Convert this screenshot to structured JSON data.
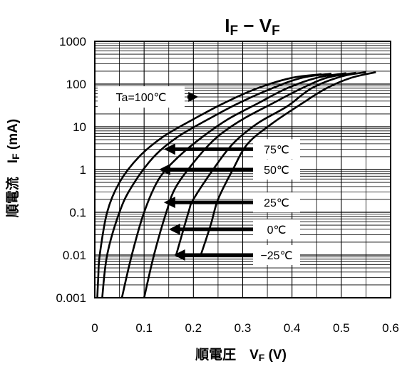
{
  "chart_data": {
    "type": "line",
    "title_main": "I",
    "title_sub1": "F",
    "title_mid": " − V",
    "title_sub2": "F",
    "xlabel_main": "順電圧　V",
    "xlabel_sub": "F",
    "xlabel_unit": " (V)",
    "ylabel_main": "順電流　I",
    "ylabel_sub": "F",
    "ylabel_unit": " (mA)",
    "xlim": [
      0,
      0.6
    ],
    "ylim": [
      0.001,
      1000
    ],
    "yscale": "log",
    "xticks": [
      "0",
      "0.1",
      "0.2",
      "0.3",
      "0.4",
      "0.5",
      "0.6"
    ],
    "yticks": [
      "0.001",
      "0.01",
      "0.1",
      "1",
      "10",
      "100",
      "1000"
    ],
    "grid": true,
    "series": [
      {
        "name": "Ta=100℃",
        "points": [
          [
            0.005,
            0.001
          ],
          [
            0.007,
            0.003
          ],
          [
            0.01,
            0.01
          ],
          [
            0.025,
            0.1
          ],
          [
            0.05,
            0.5
          ],
          [
            0.09,
            2
          ],
          [
            0.14,
            6
          ],
          [
            0.2,
            15
          ],
          [
            0.26,
            35
          ],
          [
            0.33,
            80
          ],
          [
            0.4,
            140
          ],
          [
            0.46,
            170
          ]
        ]
      },
      {
        "name": "75℃",
        "points": [
          [
            0.015,
            0.001
          ],
          [
            0.025,
            0.01
          ],
          [
            0.05,
            0.1
          ],
          [
            0.075,
            0.4
          ],
          [
            0.12,
            2
          ],
          [
            0.17,
            6
          ],
          [
            0.23,
            15
          ],
          [
            0.29,
            35
          ],
          [
            0.36,
            80
          ],
          [
            0.42,
            140
          ],
          [
            0.48,
            175
          ]
        ]
      },
      {
        "name": "50℃",
        "points": [
          [
            0.055,
            0.001
          ],
          [
            0.075,
            0.01
          ],
          [
            0.1,
            0.1
          ],
          [
            0.13,
            0.6
          ],
          [
            0.17,
            2
          ],
          [
            0.22,
            6
          ],
          [
            0.27,
            15
          ],
          [
            0.33,
            35
          ],
          [
            0.39,
            80
          ],
          [
            0.45,
            140
          ],
          [
            0.51,
            180
          ]
        ]
      },
      {
        "name": "25℃",
        "points": [
          [
            0.1,
            0.001
          ],
          [
            0.12,
            0.01
          ],
          [
            0.145,
            0.1
          ],
          [
            0.165,
            0.4
          ],
          [
            0.21,
            2
          ],
          [
            0.25,
            6
          ],
          [
            0.3,
            15
          ],
          [
            0.36,
            35
          ],
          [
            0.42,
            80
          ],
          [
            0.47,
            140
          ],
          [
            0.53,
            185
          ]
        ]
      },
      {
        "name": "0℃",
        "points": [
          [
            0.165,
            0.01
          ],
          [
            0.19,
            0.1
          ],
          [
            0.2,
            0.2
          ],
          [
            0.24,
            1
          ],
          [
            0.28,
            4
          ],
          [
            0.33,
            12
          ],
          [
            0.39,
            30
          ],
          [
            0.44,
            80
          ],
          [
            0.5,
            150
          ],
          [
            0.55,
            190
          ]
        ]
      },
      {
        "name": "−25℃",
        "points": [
          [
            0.215,
            0.01
          ],
          [
            0.235,
            0.05
          ],
          [
            0.25,
            0.2
          ],
          [
            0.28,
            1
          ],
          [
            0.31,
            4
          ],
          [
            0.36,
            12
          ],
          [
            0.42,
            35
          ],
          [
            0.47,
            80
          ],
          [
            0.52,
            140
          ],
          [
            0.57,
            190
          ]
        ]
      }
    ],
    "annotations": [
      {
        "label": "Ta=100℃",
        "value_x": 0.21,
        "value_y": 50
      },
      {
        "label": "75℃",
        "value_x": 0.14,
        "value_y": 3
      },
      {
        "label": "50℃",
        "value_x": 0.13,
        "value_y": 1
      },
      {
        "label": "25℃",
        "value_x": 0.14,
        "value_y": 0.17
      },
      {
        "label": "0℃",
        "value_x": 0.15,
        "value_y": 0.04
      },
      {
        "label": "−25℃",
        "value_x": 0.16,
        "value_y": 0.01
      }
    ]
  }
}
